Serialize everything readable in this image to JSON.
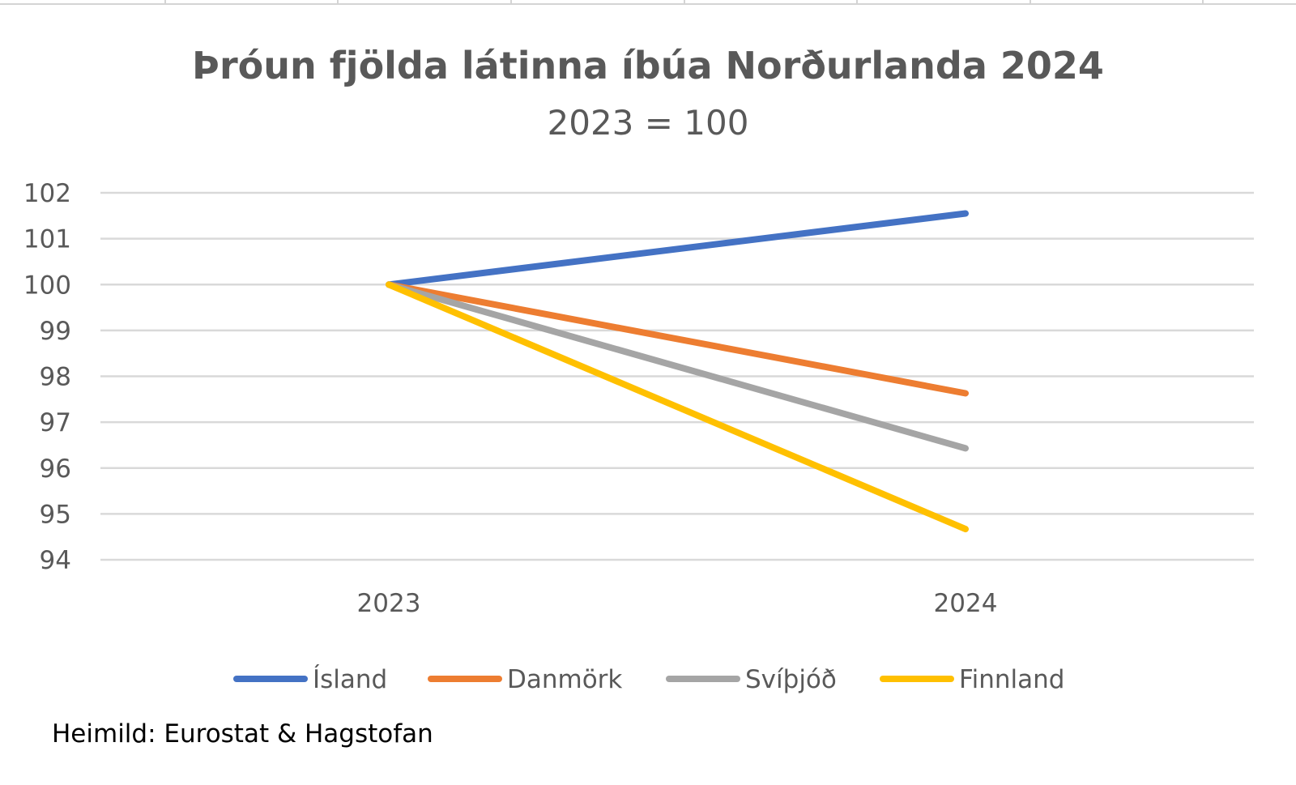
{
  "chart_data": {
    "type": "line",
    "title": "Þróun fjölda látinna íbúa Norðurlanda 2024",
    "subtitle": "2023 = 100",
    "xlabel": "",
    "ylabel": "",
    "categories": [
      "2023",
      "2024"
    ],
    "ylim": [
      94,
      102
    ],
    "yticks": [
      102,
      101,
      100,
      99,
      98,
      97,
      96,
      95,
      94
    ],
    "grid": true,
    "legend_position": "bottom",
    "series": [
      {
        "name": "Ísland",
        "color": "#4472C4",
        "values": [
          100,
          101.55
        ]
      },
      {
        "name": "Danmörk",
        "color": "#ED7D31",
        "values": [
          100,
          97.63
        ]
      },
      {
        "name": "Svíþjóð",
        "color": "#A5A5A5",
        "values": [
          100,
          96.43
        ]
      },
      {
        "name": "Finnland",
        "color": "#FFC000",
        "values": [
          100,
          94.67
        ]
      }
    ],
    "source_note": "Heimild: Eurostat & Hagstofan"
  },
  "colors": {
    "gridline": "#D9D9D9",
    "text": "#595959",
    "top_border": "#D4D4D4"
  }
}
